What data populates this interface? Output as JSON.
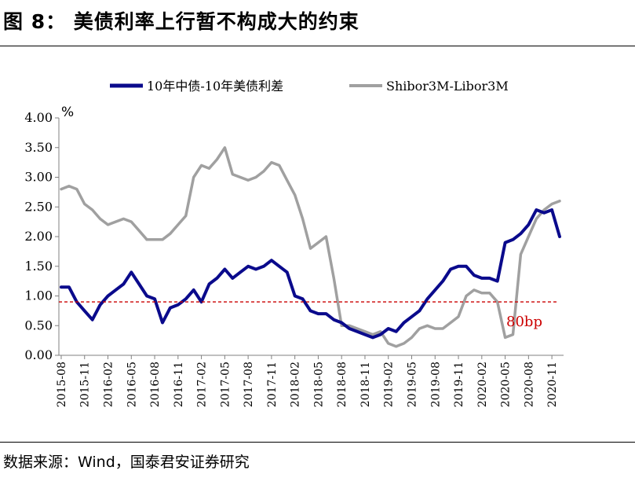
{
  "header": {
    "title": "图 8： 美债利率上行暂不构成大的约束"
  },
  "footer": {
    "source": "数据来源：Wind，国泰君安证券研究"
  },
  "chart_data": {
    "type": "line",
    "ylabel": "%",
    "ylim": [
      0,
      4
    ],
    "yticks": [
      "0.00",
      "0.50",
      "1.00",
      "1.50",
      "2.00",
      "2.50",
      "3.00",
      "3.50",
      "4.00"
    ],
    "x_range": [
      "2015-08",
      "2020-12"
    ],
    "x_ticks": [
      "2015-08",
      "2015-11",
      "2016-02",
      "2016-05",
      "2016-08",
      "2016-11",
      "2017-02",
      "2017-05",
      "2017-08",
      "2017-11",
      "2018-02",
      "2018-05",
      "2018-08",
      "2018-11",
      "2019-02",
      "2019-05",
      "2019-08",
      "2019-11",
      "2020-02",
      "2020-05",
      "2020-08",
      "2020-11"
    ],
    "legend_position": "top",
    "grid": false,
    "reference_line": {
      "value": 0.9,
      "label": "80bp",
      "color": "#cc0000"
    },
    "series": [
      {
        "name": "10年中债-10年美债利差",
        "color": "#0a0a8c",
        "x": [
          "2015-08",
          "2015-09",
          "2015-10",
          "2015-11",
          "2015-12",
          "2016-01",
          "2016-02",
          "2016-03",
          "2016-04",
          "2016-05",
          "2016-06",
          "2016-07",
          "2016-08",
          "2016-09",
          "2016-10",
          "2016-11",
          "2016-12",
          "2017-01",
          "2017-02",
          "2017-03",
          "2017-04",
          "2017-05",
          "2017-06",
          "2017-07",
          "2017-08",
          "2017-09",
          "2017-10",
          "2017-11",
          "2017-12",
          "2018-01",
          "2018-02",
          "2018-03",
          "2018-04",
          "2018-05",
          "2018-06",
          "2018-07",
          "2018-08",
          "2018-09",
          "2018-10",
          "2018-11",
          "2018-12",
          "2019-01",
          "2019-02",
          "2019-03",
          "2019-04",
          "2019-05",
          "2019-06",
          "2019-07",
          "2019-08",
          "2019-09",
          "2019-10",
          "2019-11",
          "2019-12",
          "2020-01",
          "2020-02",
          "2020-03",
          "2020-04",
          "2020-05",
          "2020-06",
          "2020-07",
          "2020-08",
          "2020-09",
          "2020-10",
          "2020-11",
          "2020-12"
        ],
        "values": [
          1.15,
          1.15,
          0.9,
          0.75,
          0.6,
          0.85,
          1.0,
          1.1,
          1.2,
          1.4,
          1.2,
          1.0,
          0.95,
          0.55,
          0.8,
          0.85,
          0.95,
          1.1,
          0.9,
          1.2,
          1.3,
          1.45,
          1.3,
          1.4,
          1.5,
          1.45,
          1.5,
          1.6,
          1.5,
          1.4,
          1.0,
          0.95,
          0.75,
          0.7,
          0.7,
          0.6,
          0.55,
          0.45,
          0.4,
          0.35,
          0.3,
          0.35,
          0.45,
          0.4,
          0.55,
          0.65,
          0.75,
          0.95,
          1.1,
          1.25,
          1.45,
          1.5,
          1.5,
          1.35,
          1.3,
          1.3,
          1.25,
          1.9,
          1.95,
          2.05,
          2.2,
          2.45,
          2.4,
          2.45,
          2.0
        ]
      },
      {
        "name": "Shibor3M-Libor3M",
        "color": "#a0a0a0",
        "x": [
          "2015-08",
          "2015-09",
          "2015-10",
          "2015-11",
          "2015-12",
          "2016-01",
          "2016-02",
          "2016-03",
          "2016-04",
          "2016-05",
          "2016-06",
          "2016-07",
          "2016-08",
          "2016-09",
          "2016-10",
          "2016-11",
          "2016-12",
          "2017-01",
          "2017-02",
          "2017-03",
          "2017-04",
          "2017-05",
          "2017-06",
          "2017-07",
          "2017-08",
          "2017-09",
          "2017-10",
          "2017-11",
          "2017-12",
          "2018-01",
          "2018-02",
          "2018-03",
          "2018-04",
          "2018-05",
          "2018-06",
          "2018-07",
          "2018-08",
          "2018-09",
          "2018-10",
          "2018-11",
          "2018-12",
          "2019-01",
          "2019-02",
          "2019-03",
          "2019-04",
          "2019-05",
          "2019-06",
          "2019-07",
          "2019-08",
          "2019-09",
          "2019-10",
          "2019-11",
          "2019-12",
          "2020-01",
          "2020-02",
          "2020-03",
          "2020-04",
          "2020-05",
          "2020-06",
          "2020-07",
          "2020-08",
          "2020-09",
          "2020-10",
          "2020-11",
          "2020-12"
        ],
        "values": [
          2.8,
          2.85,
          2.8,
          2.55,
          2.45,
          2.3,
          2.2,
          2.25,
          2.3,
          2.25,
          2.1,
          1.95,
          1.95,
          1.95,
          2.05,
          2.2,
          2.35,
          3.0,
          3.2,
          3.15,
          3.3,
          3.5,
          3.05,
          3.0,
          2.95,
          3.0,
          3.1,
          3.25,
          3.2,
          2.95,
          2.7,
          2.3,
          1.8,
          1.9,
          2.0,
          1.3,
          0.5,
          0.5,
          0.45,
          0.4,
          0.35,
          0.4,
          0.2,
          0.15,
          0.2,
          0.3,
          0.45,
          0.5,
          0.45,
          0.45,
          0.55,
          0.65,
          1.0,
          1.1,
          1.05,
          1.05,
          0.9,
          0.3,
          0.35,
          1.7,
          2.0,
          2.3,
          2.45,
          2.55,
          2.6
        ]
      }
    ]
  }
}
